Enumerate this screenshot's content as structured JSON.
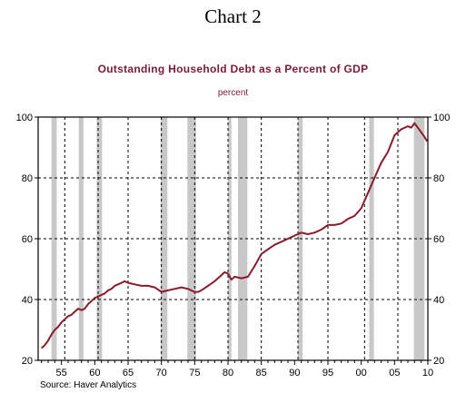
{
  "heading": "Chart 2",
  "source": "Source: Haver Analytics",
  "chart_data": {
    "type": "line",
    "title": "Outstanding Household Debt as a Percent of GDP",
    "ylabel": "percent",
    "xlabel": "",
    "xlim": [
      1951.5,
      2010.0
    ],
    "ylim": [
      20,
      100
    ],
    "yticks": [
      20,
      40,
      60,
      80,
      100
    ],
    "xtick_labels": [
      "55",
      "60",
      "65",
      "70",
      "75",
      "80",
      "85",
      "90",
      "95",
      "00",
      "05",
      "10"
    ],
    "xtick_years": [
      1955,
      1960,
      1965,
      1970,
      1975,
      1980,
      1985,
      1990,
      1995,
      2000,
      2005,
      2010
    ],
    "vgrid_years": [
      1955.5,
      1960.5,
      1965,
      1970,
      1975,
      1980,
      1985,
      1990.5,
      1995,
      2000.5,
      2005.5
    ],
    "hgrid_values": [
      40,
      60,
      80
    ],
    "grid": true,
    "line_color": "#8b1a2b",
    "recession_color": "#c8c8c8",
    "recessions": [
      [
        1953.5,
        1954.3
      ],
      [
        1957.6,
        1958.3
      ],
      [
        1960.3,
        1961.1
      ],
      [
        1969.9,
        1970.9
      ],
      [
        1973.9,
        1975.2
      ],
      [
        1980.0,
        1980.5
      ],
      [
        1981.5,
        1982.9
      ],
      [
        1990.5,
        1991.2
      ],
      [
        2001.2,
        2001.9
      ],
      [
        2007.9,
        2009.5
      ]
    ],
    "series": [
      {
        "x": [
          1952.0,
          1952.5,
          1953.0,
          1953.5,
          1954.0,
          1954.5,
          1955.0,
          1955.5,
          1956.0,
          1956.5,
          1957.0,
          1957.5,
          1958.0,
          1958.5,
          1959.0,
          1959.5,
          1960.0,
          1960.5,
          1961.0,
          1961.5,
          1962.0,
          1962.5,
          1963.0,
          1963.5,
          1964.0,
          1964.5,
          1965.0,
          1966.0,
          1967.0,
          1968.0,
          1969.0,
          1970.0,
          1971.0,
          1972.0,
          1973.0,
          1974.0,
          1975.0,
          1975.5,
          1976.0,
          1977.0,
          1978.0,
          1979.0,
          1979.5,
          1980.0,
          1980.5,
          1981.0,
          1982.0,
          1983.0,
          1984.0,
          1985.0,
          1986.0,
          1987.0,
          1988.0,
          1989.0,
          1990.0,
          1991.0,
          1992.0,
          1993.0,
          1994.0,
          1995.0,
          1996.0,
          1997.0,
          1998.0,
          1999.0,
          2000.0,
          2001.0,
          2002.0,
          2003.0,
          2004.0,
          2005.0,
          2006.0,
          2007.0,
          2007.5,
          2008.0,
          2008.5,
          2009.0,
          2009.5,
          2009.9
        ],
        "y": [
          24,
          25,
          26.5,
          28.5,
          30,
          31,
          32.5,
          33.5,
          34.5,
          35,
          36,
          37,
          36.5,
          37,
          38.5,
          39.5,
          40.5,
          41,
          41.5,
          42,
          43,
          43.5,
          44.5,
          45,
          45.5,
          46,
          45.5,
          45,
          44.5,
          44.5,
          44,
          42.5,
          43,
          43.5,
          44,
          43.5,
          42.5,
          42.5,
          43,
          44.5,
          46,
          48,
          49,
          48.5,
          46.5,
          47.5,
          47,
          47.5,
          51,
          55,
          56.5,
          58,
          59,
          60,
          61,
          62,
          61.5,
          62,
          63,
          64.5,
          64.5,
          65,
          66.5,
          67.5,
          70,
          75,
          80,
          85,
          88.5,
          94,
          96,
          97,
          96.5,
          98,
          96.5,
          95,
          93.5,
          92
        ]
      }
    ]
  }
}
